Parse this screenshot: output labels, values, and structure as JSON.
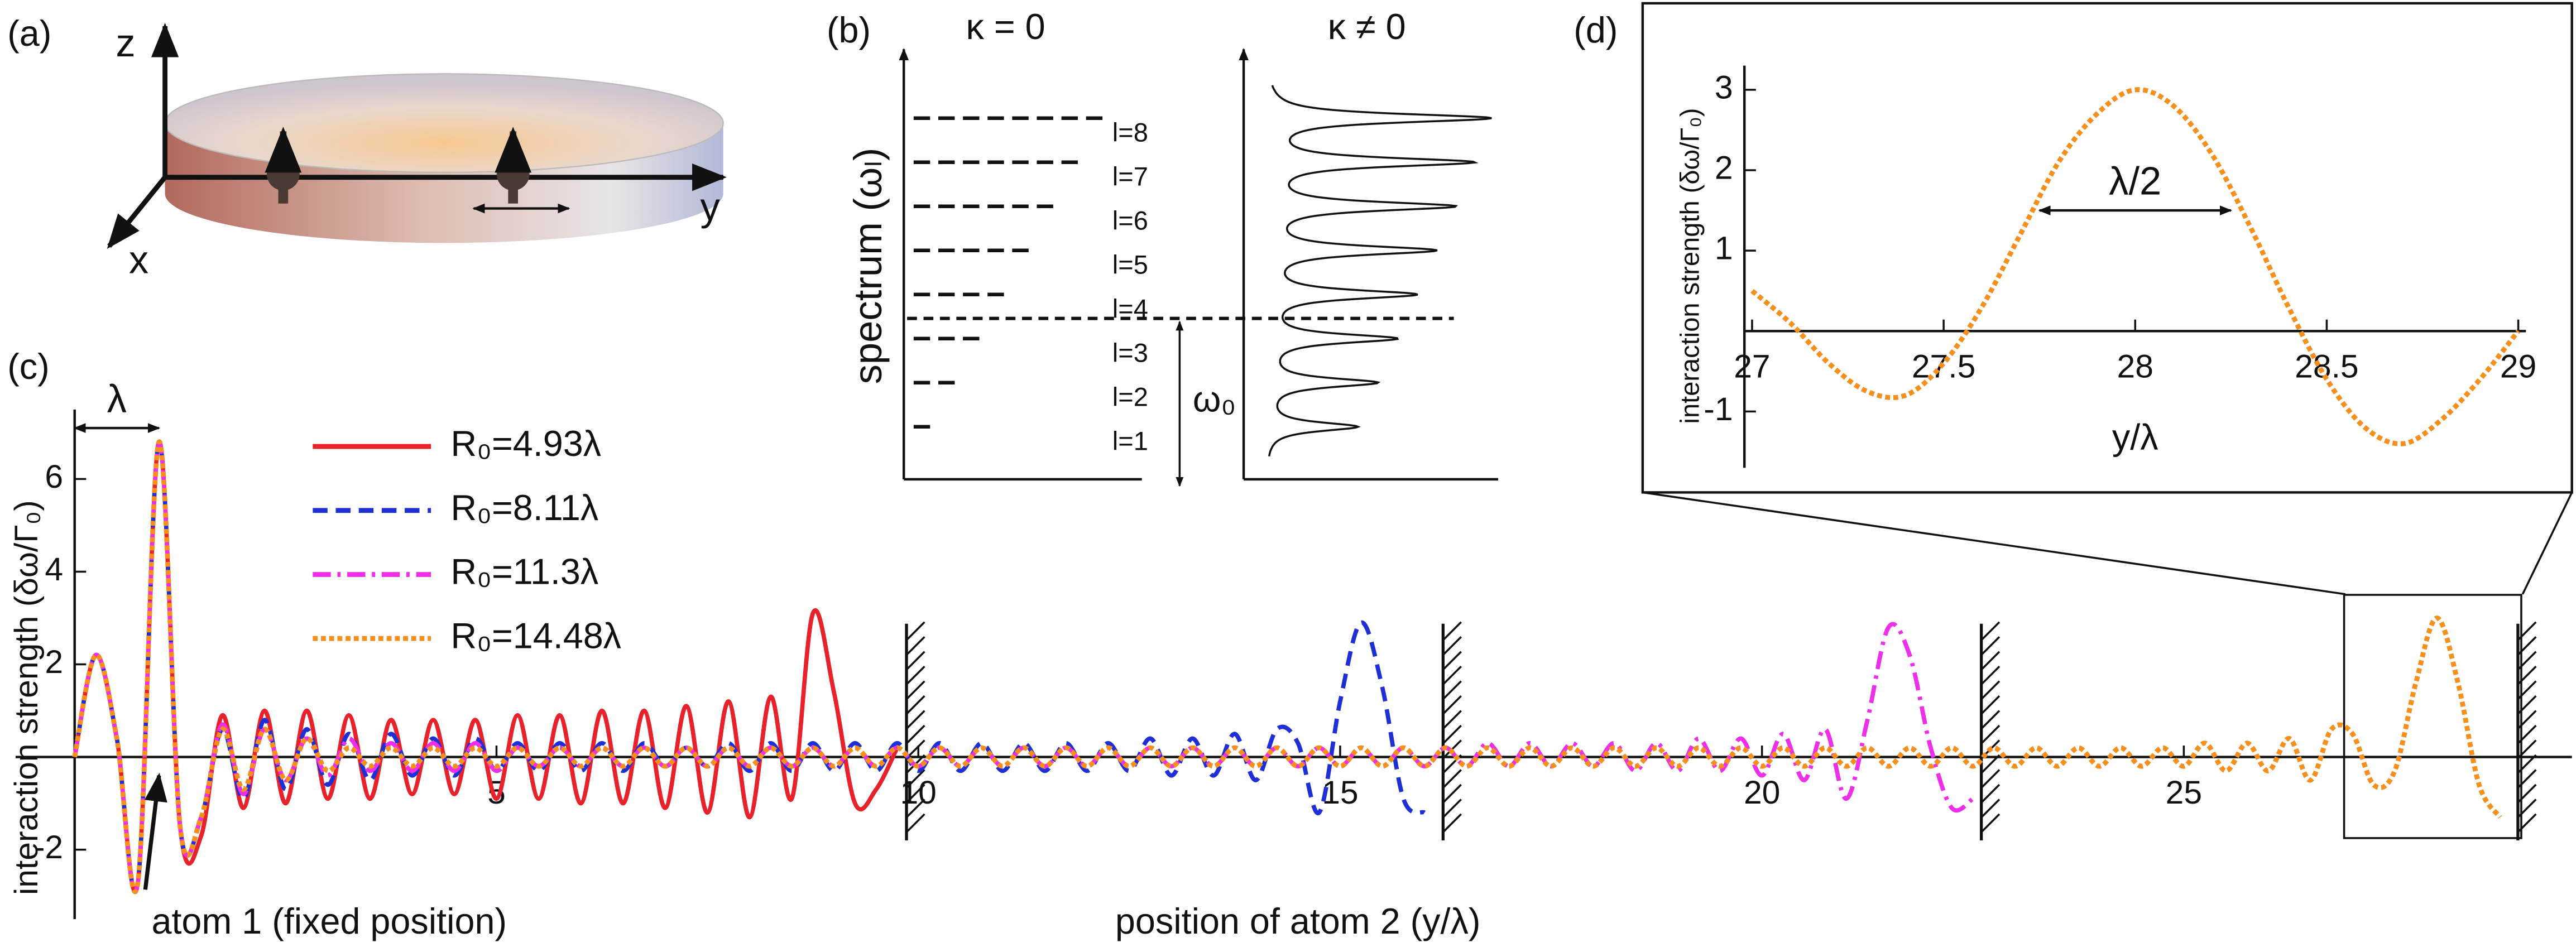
{
  "panel_a": {
    "label": "(a)",
    "z": "z",
    "y": "y",
    "x": "x"
  },
  "panel_b": {
    "label": "(b)",
    "left_title": "κ = 0",
    "right_title": "κ ≠ 0",
    "ylabel": "spectrum (ωₗ)",
    "levels": [
      "l=1",
      "l=2",
      "l=3",
      "l=4",
      "l=5",
      "l=6",
      "l=7",
      "l=8"
    ],
    "gap_label": "ω₀"
  },
  "chart_data": [
    {
      "type": "line",
      "panel": "(c)",
      "xlabel": "position of atom 2 (y/λ)",
      "ylabel": "interaction strength (δω/Γ₀)",
      "xlim": [
        -0.7,
        29.6
      ],
      "ylim": [
        -3.5,
        7.5
      ],
      "xticks": [
        5,
        10,
        15,
        20,
        25
      ],
      "yticks": [
        -2,
        2,
        4,
        6
      ],
      "legend": "upper left",
      "x": [
        0,
        0.25,
        0.5,
        0.75,
        1,
        1.25,
        1.5,
        1.75,
        2,
        2.25,
        2.5,
        2.75,
        3,
        3.25,
        3.5,
        3.75,
        4,
        4.25,
        4.5,
        4.75,
        5,
        5.25,
        5.5,
        5.75,
        6,
        6.25,
        6.5,
        6.75,
        7,
        7.25,
        7.5,
        7.75,
        8,
        8.25,
        8.5,
        8.75,
        9,
        9.25,
        9.5,
        9.75,
        10,
        10.25,
        10.5,
        10.75,
        11,
        11.25,
        11.5,
        11.75,
        12,
        12.25,
        12.5,
        12.75,
        13,
        13.25,
        13.5,
        13.75,
        14,
        14.25,
        14.5,
        14.75,
        15,
        15.25,
        15.5,
        15.75,
        16,
        16.25,
        16.5,
        16.75,
        17,
        17.25,
        17.5,
        17.75,
        18,
        18.25,
        18.5,
        18.75,
        19,
        19.25,
        19.5,
        19.75,
        20,
        20.25,
        20.5,
        20.75,
        21,
        21.25,
        21.5,
        21.75,
        22,
        22.25,
        22.5,
        22.75,
        23,
        23.25,
        23.5,
        23.75,
        24,
        24.25,
        24.5,
        24.75,
        25,
        25.25,
        25.5,
        25.75,
        26,
        26.25,
        26.5,
        26.75,
        27,
        27.25,
        27.5,
        27.75,
        28,
        28.25,
        28.5,
        28.75
      ],
      "series": [
        {
          "name": "R₀=4.93λ",
          "color": "#e8222a",
          "style": "solid",
          "values": [
            0,
            2.2,
            0.4,
            -2.7,
            6.8,
            -1.5,
            -1.7,
            0.9,
            -1.1,
            1.0,
            -1.0,
            1.0,
            -0.9,
            0.9,
            -0.9,
            0.8,
            -0.8,
            0.8,
            -0.8,
            0.8,
            -0.9,
            0.9,
            -0.9,
            0.9,
            -1.0,
            1.0,
            -1.0,
            1.0,
            -1.1,
            1.1,
            -1.2,
            1.2,
            -1.3,
            1.3,
            -0.9,
            3.1,
            1.4,
            -1.0,
            -0.7,
            0.2,
            null,
            null,
            null,
            null,
            null,
            null,
            null,
            null,
            null,
            null,
            null,
            null,
            null,
            null,
            null,
            null,
            null,
            null,
            null,
            null,
            null,
            null,
            null,
            null,
            null,
            null,
            null,
            null,
            null,
            null,
            null,
            null,
            null,
            null,
            null,
            null,
            null,
            null,
            null,
            null,
            null,
            null,
            null,
            null,
            null,
            null,
            null,
            null,
            null,
            null,
            null,
            null,
            null,
            null,
            null,
            null,
            null,
            null,
            null,
            null,
            null,
            null,
            null,
            null,
            null,
            null,
            null,
            null,
            null,
            null,
            null,
            null,
            null,
            null,
            null,
            null
          ]
        },
        {
          "name": "R₀=8.11λ",
          "color": "#1f2fd6",
          "style": "dashed",
          "values": [
            0,
            2.2,
            0.4,
            -2.7,
            6.8,
            -1.5,
            -1.3,
            0.6,
            -0.9,
            0.8,
            -0.7,
            0.6,
            -0.6,
            0.5,
            -0.5,
            0.5,
            -0.4,
            0.4,
            -0.4,
            0.4,
            -0.3,
            0.3,
            -0.3,
            0.3,
            -0.3,
            0.3,
            -0.3,
            0.3,
            -0.2,
            0.2,
            -0.2,
            0.3,
            -0.3,
            0.3,
            -0.3,
            0.3,
            -0.3,
            0.3,
            -0.3,
            0.3,
            -0.3,
            0.3,
            -0.3,
            0.3,
            -0.3,
            0.3,
            -0.3,
            0.3,
            -0.3,
            0.3,
            -0.3,
            0.4,
            -0.4,
            0.4,
            -0.4,
            0.5,
            -0.5,
            0.6,
            0.3,
            -1.2,
            1.2,
            2.9,
            1.5,
            -0.9,
            -1.2,
            null,
            null,
            null,
            null,
            null,
            null,
            null,
            null,
            null,
            null,
            null,
            null,
            null,
            null,
            null,
            null,
            null,
            null,
            null,
            null,
            null,
            null,
            null,
            null,
            null,
            null,
            null,
            null,
            null,
            null,
            null,
            null,
            null,
            null,
            null,
            null,
            null,
            null,
            null,
            null,
            null,
            null,
            null,
            null,
            null,
            null,
            null,
            null,
            null,
            null,
            null
          ]
        },
        {
          "name": "R₀=11.3λ",
          "color": "#ee2ee8",
          "style": "dashdot",
          "values": [
            0,
            2.2,
            0.4,
            -2.7,
            6.8,
            -1.5,
            -1.3,
            0.7,
            -0.8,
            0.6,
            -0.5,
            0.4,
            -0.4,
            0.4,
            -0.3,
            0.3,
            -0.3,
            0.3,
            -0.3,
            0.3,
            -0.3,
            0.2,
            -0.2,
            0.2,
            -0.2,
            0.2,
            -0.2,
            0.2,
            -0.2,
            0.2,
            -0.2,
            0.2,
            -0.2,
            0.2,
            -0.2,
            0.2,
            -0.2,
            0.2,
            -0.2,
            0.2,
            -0.2,
            0.2,
            -0.2,
            0.2,
            -0.2,
            0.2,
            -0.2,
            0.2,
            -0.2,
            0.2,
            -0.2,
            0.2,
            -0.2,
            0.2,
            -0.2,
            0.2,
            -0.2,
            0.2,
            -0.2,
            0.2,
            -0.2,
            0.2,
            -0.2,
            0.2,
            -0.2,
            0.2,
            -0.2,
            0.3,
            -0.2,
            0.3,
            -0.2,
            0.3,
            -0.2,
            0.3,
            -0.3,
            0.3,
            -0.3,
            0.4,
            -0.3,
            0.4,
            -0.4,
            0.5,
            -0.5,
            0.6,
            -0.9,
            0.8,
            2.8,
            2.2,
            0.2,
            -1.1,
            -0.9,
            null,
            null,
            null,
            null,
            null,
            null,
            null,
            null,
            null,
            null,
            null,
            null,
            null,
            null,
            null,
            null,
            null,
            null,
            null,
            null,
            null,
            null,
            null,
            null,
            null
          ]
        },
        {
          "name": "R₀=14.48λ",
          "color": "#f5901e",
          "style": "dotted",
          "values": [
            0,
            2.2,
            0.4,
            -2.7,
            6.8,
            -1.5,
            -1.3,
            0.6,
            -0.7,
            0.6,
            -0.5,
            0.4,
            -0.3,
            0.2,
            -0.2,
            0.2,
            -0.2,
            0.2,
            -0.2,
            0.2,
            -0.2,
            0.2,
            -0.2,
            0.2,
            -0.2,
            0.2,
            -0.2,
            0.2,
            -0.2,
            0.2,
            -0.2,
            0.2,
            -0.2,
            0.2,
            -0.2,
            0.2,
            -0.2,
            0.2,
            -0.2,
            0.2,
            -0.2,
            0.2,
            -0.2,
            0.2,
            -0.2,
            0.2,
            -0.2,
            0.2,
            -0.2,
            0.2,
            -0.2,
            0.2,
            -0.2,
            0.2,
            -0.2,
            0.2,
            -0.2,
            0.2,
            -0.2,
            0.2,
            -0.2,
            0.2,
            -0.2,
            0.2,
            -0.2,
            0.2,
            -0.2,
            0.2,
            -0.2,
            0.2,
            -0.2,
            0.2,
            -0.2,
            0.2,
            -0.2,
            0.2,
            -0.2,
            0.2,
            -0.2,
            0.2,
            -0.2,
            0.2,
            -0.2,
            0.2,
            -0.2,
            0.2,
            -0.2,
            0.2,
            -0.2,
            0.2,
            -0.2,
            0.2,
            -0.2,
            0.2,
            -0.2,
            0.2,
            -0.2,
            0.2,
            -0.2,
            0.2,
            -0.2,
            0.3,
            -0.3,
            0.3,
            -0.3,
            0.4,
            -0.5,
            0.6,
            0.5,
            -0.6,
            -0.3,
            1.6,
            3.0,
            1.6,
            -0.6,
            -1.3
          ]
        }
      ],
      "walls": [
        9.86,
        16.22,
        22.6,
        28.96
      ],
      "annotations": [
        {
          "text": "λ",
          "span": [
            0,
            1
          ],
          "y": 7.1
        },
        {
          "text": "atom 1 (fixed position)",
          "x": 1,
          "y": -0.4
        }
      ],
      "zoom_box": {
        "xlim": [
          26.9,
          29.0
        ],
        "ylim": [
          -1.75,
          3.5
        ]
      }
    },
    {
      "type": "line",
      "panel": "(d)",
      "xlabel": "y/λ",
      "ylabel": "interaction strength (δω/Γ₀)",
      "xlim": [
        26.98,
        29.02
      ],
      "ylim": [
        -1.7,
        3.3
      ],
      "xticks": [
        27,
        27.5,
        28,
        28.5,
        29
      ],
      "yticks": [
        -1,
        1,
        2,
        3
      ],
      "x": [
        27,
        27.1,
        27.2,
        27.3,
        27.4,
        27.5,
        27.6,
        27.7,
        27.8,
        27.9,
        28,
        28.1,
        28.2,
        28.3,
        28.4,
        28.5,
        28.6,
        28.7,
        28.8,
        28.9,
        29
      ],
      "series": [
        {
          "color": "#f5901e",
          "style": "dotted",
          "values": [
            0.5,
            0.1,
            -0.4,
            -0.75,
            -0.8,
            -0.4,
            0.3,
            1.2,
            2.1,
            2.7,
            3.0,
            2.8,
            2.2,
            1.3,
            0.3,
            -0.6,
            -1.2,
            -1.4,
            -1.1,
            -0.6,
            0.0
          ]
        }
      ],
      "annotations": [
        {
          "text": "λ/2",
          "span": [
            27.75,
            28.25
          ],
          "y": 1.5
        }
      ]
    }
  ]
}
